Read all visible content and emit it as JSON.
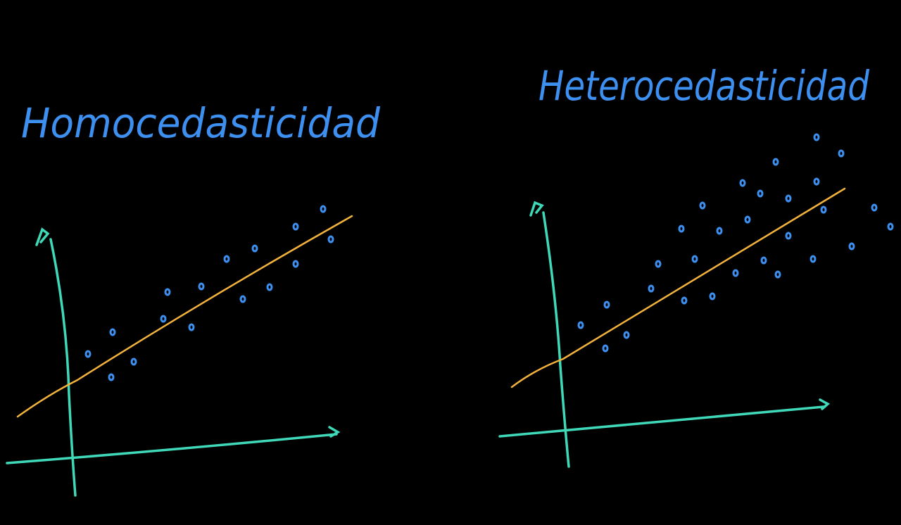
{
  "panels": [
    {
      "title": "Homocedasticidad"
    },
    {
      "title": "Heterocedasticidad"
    }
  ]
}
